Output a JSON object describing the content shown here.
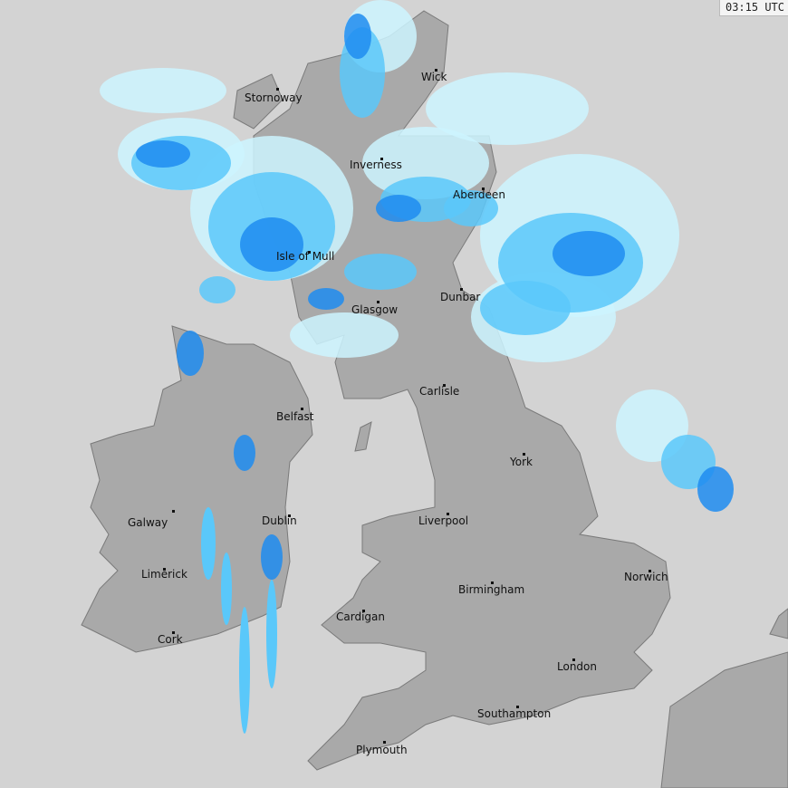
{
  "timestamp": "03:15 UTC",
  "colors": {
    "sea": "#d3d3d3",
    "land": "#a9a9a9",
    "border": "#777777",
    "rain_light": "#ccf4ff",
    "rain_medium": "#5ac8fa",
    "rain_heavy": "#1e8cf0"
  },
  "cities": [
    "Stornoway",
    "Wick",
    "Inverness",
    "Aberdeen",
    "Isle of Mull",
    "Glasgow",
    "Dunbar",
    "Carlisle",
    "Belfast",
    "York",
    "Galway",
    "Dublin",
    "Liverpool",
    "Limerick",
    "Norwich",
    "Birmingham",
    "Cardigan",
    "Cork",
    "London",
    "Southampton",
    "Plymouth"
  ]
}
